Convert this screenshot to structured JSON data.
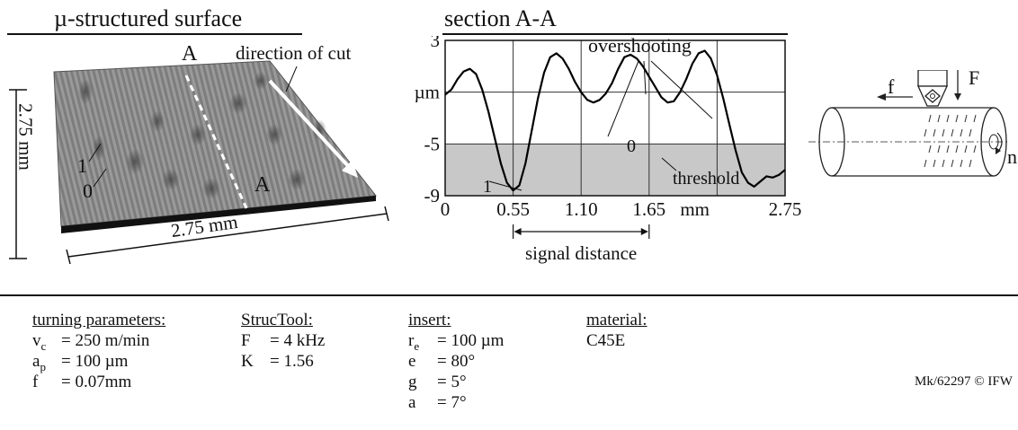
{
  "left_panel": {
    "title": "µ-structured surface",
    "section_letter_top": "A",
    "section_letter_bottom": "A",
    "cut_direction_label": "direction of cut",
    "height_label": "2.75 mm",
    "width_label": "2.75 mm",
    "marker_1": "1",
    "marker_0": "0"
  },
  "section_panel": {
    "title": "section A-A",
    "overshooting_label": "overshooting",
    "threshold_label": "threshold",
    "signal_distance_label": "signal distance",
    "marker_0": "0",
    "marker_1": "1",
    "y_unit": "µm",
    "x_unit": "mm"
  },
  "chart_data": {
    "type": "line",
    "title": "section A-A",
    "xlabel": "mm",
    "ylabel": "µm",
    "xlim": [
      0,
      2.75
    ],
    "ylim": [
      -9,
      3
    ],
    "x_ticks": [
      "0",
      "0.55",
      "1.10",
      "1.65",
      "2.75"
    ],
    "y_ticks": [
      "3",
      "µm",
      "-5",
      "-9"
    ],
    "threshold": -5,
    "grid": true,
    "series": [
      {
        "x": [
          0,
          0.05,
          0.1,
          0.15,
          0.2,
          0.25,
          0.3,
          0.35,
          0.4,
          0.45,
          0.5,
          0.55,
          0.6,
          0.65,
          0.7,
          0.75,
          0.8,
          0.85,
          0.9,
          0.95,
          1.0,
          1.05,
          1.1,
          1.15,
          1.2,
          1.25,
          1.3,
          1.35,
          1.4,
          1.45,
          1.5,
          1.55,
          1.6,
          1.65,
          1.7,
          1.75,
          1.8,
          1.85,
          1.9,
          1.95,
          2.0,
          2.05,
          2.1,
          2.15,
          2.2,
          2.25,
          2.3,
          2.35,
          2.4,
          2.45,
          2.5,
          2.55,
          2.6,
          2.65,
          2.7,
          2.75
        ],
        "values": [
          -1.2,
          -0.8,
          0.0,
          0.6,
          0.8,
          0.4,
          -0.8,
          -2.5,
          -4.5,
          -6.5,
          -8.0,
          -8.6,
          -8.2,
          -6.5,
          -4.0,
          -1.5,
          0.5,
          1.7,
          2.0,
          1.6,
          0.8,
          -0.2,
          -1.0,
          -1.6,
          -1.8,
          -1.6,
          -1.1,
          -0.3,
          0.8,
          1.7,
          1.9,
          1.6,
          1.0,
          0.2,
          -0.6,
          -1.4,
          -1.8,
          -1.7,
          -1.0,
          0.0,
          1.2,
          2.0,
          2.2,
          1.6,
          0.3,
          -1.5,
          -3.5,
          -5.5,
          -7.2,
          -8.0,
          -8.3,
          -7.9,
          -7.5,
          -7.6,
          -7.4,
          -7.0
        ]
      }
    ]
  },
  "parameters": {
    "turning": {
      "header": "turning parameters:",
      "rows": [
        {
          "symbol": "v",
          "sub": "c",
          "value": "= 250 m/min"
        },
        {
          "symbol": "a",
          "sub": "p",
          "value": "= 100 µm"
        },
        {
          "symbol": "f",
          "sub": "",
          "value": "= 0.07mm"
        }
      ]
    },
    "structool": {
      "header": "StrucTool:",
      "rows": [
        {
          "symbol": "F",
          "sub": "",
          "value": "= 4 kHz"
        },
        {
          "symbol": "K",
          "sub": "",
          "value": "= 1.56"
        }
      ]
    },
    "insert": {
      "header": "insert:",
      "rows": [
        {
          "symbol": "r",
          "sub": "e",
          "value": "= 100 µm"
        },
        {
          "symbol": "e",
          "sub": "",
          "value": "= 80°"
        },
        {
          "symbol": "g",
          "sub": "",
          "value": "= 5°"
        },
        {
          "symbol": "a",
          "sub": "",
          "value": "= 7°"
        }
      ]
    },
    "material": {
      "header": "material:",
      "value": "C45E"
    }
  },
  "tool_diagram": {
    "f_label": "f",
    "F_label": "F",
    "n_label": "n"
  },
  "footer": {
    "code": "Mk/62297 © IFW"
  }
}
